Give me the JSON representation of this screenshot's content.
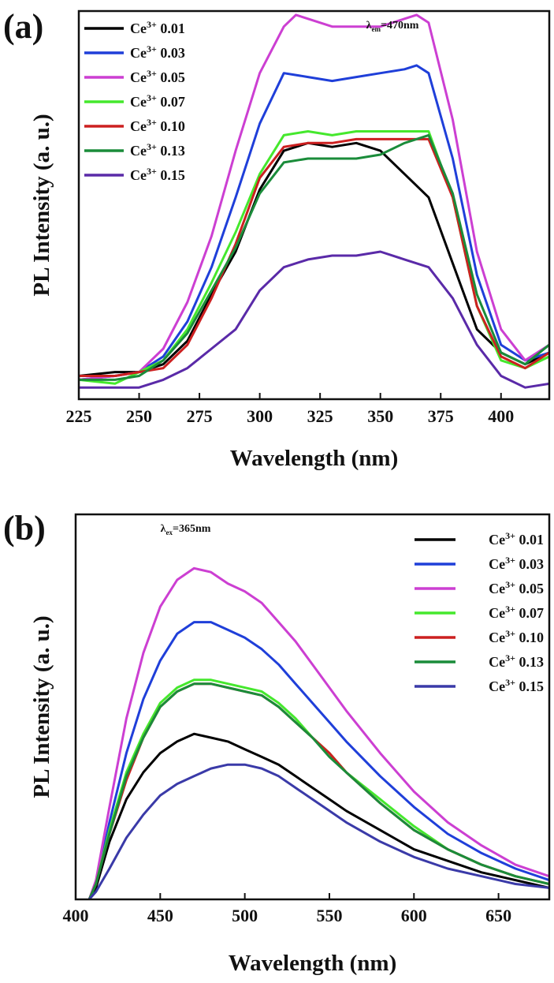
{
  "chart_data": [
    {
      "type": "line",
      "panel_label": "(a)",
      "xlabel": "Wavelength (nm)",
      "ylabel": "PL Intensity (a. u.)",
      "xlim": [
        225,
        420
      ],
      "ylim": [
        0,
        1.0
      ],
      "xticks": [
        225,
        250,
        275,
        300,
        325,
        350,
        375,
        400
      ],
      "annotation": {
        "symbol": "λ",
        "sub": "em",
        "text": "=470nm",
        "x": 355,
        "y": 1.0
      },
      "legend_position": "top-left",
      "series": [
        {
          "name": "Ce3+ 0.01",
          "color": "#000000",
          "x": [
            225,
            240,
            250,
            260,
            270,
            280,
            290,
            300,
            310,
            320,
            330,
            340,
            350,
            360,
            370,
            380,
            390,
            400,
            410,
            420
          ],
          "y": [
            0.06,
            0.07,
            0.07,
            0.09,
            0.15,
            0.27,
            0.38,
            0.54,
            0.64,
            0.66,
            0.65,
            0.66,
            0.64,
            0.58,
            0.52,
            0.35,
            0.18,
            0.12,
            0.09,
            0.12
          ]
        },
        {
          "name": "Ce3+ 0.03",
          "color": "#1f3fd9",
          "x": [
            225,
            240,
            250,
            260,
            270,
            280,
            290,
            300,
            310,
            320,
            330,
            340,
            350,
            360,
            365,
            370,
            380,
            390,
            400,
            410,
            420
          ],
          "y": [
            0.05,
            0.06,
            0.07,
            0.11,
            0.2,
            0.34,
            0.52,
            0.71,
            0.84,
            0.83,
            0.82,
            0.83,
            0.84,
            0.85,
            0.86,
            0.84,
            0.62,
            0.32,
            0.14,
            0.1,
            0.12
          ]
        },
        {
          "name": "Ce3+ 0.05",
          "color": "#cc3fd2",
          "x": [
            225,
            240,
            250,
            260,
            270,
            280,
            290,
            300,
            310,
            315,
            320,
            330,
            340,
            350,
            360,
            365,
            370,
            380,
            390,
            400,
            410,
            420
          ],
          "y": [
            0.05,
            0.06,
            0.07,
            0.13,
            0.25,
            0.42,
            0.64,
            0.84,
            0.96,
            0.99,
            0.98,
            0.96,
            0.96,
            0.96,
            0.98,
            0.99,
            0.97,
            0.72,
            0.38,
            0.18,
            0.1,
            0.14
          ]
        },
        {
          "name": "Ce3+ 0.07",
          "color": "#45e82d",
          "x": [
            225,
            240,
            250,
            260,
            270,
            280,
            290,
            300,
            310,
            320,
            330,
            340,
            350,
            360,
            370,
            380,
            390,
            400,
            410,
            420
          ],
          "y": [
            0.05,
            0.04,
            0.07,
            0.1,
            0.18,
            0.3,
            0.43,
            0.58,
            0.68,
            0.69,
            0.68,
            0.69,
            0.69,
            0.69,
            0.69,
            0.52,
            0.24,
            0.1,
            0.08,
            0.11
          ]
        },
        {
          "name": "Ce3+ 0.10",
          "color": "#cc2020",
          "x": [
            225,
            240,
            250,
            260,
            270,
            280,
            290,
            300,
            310,
            320,
            330,
            340,
            350,
            360,
            370,
            380,
            390,
            400,
            410,
            420
          ],
          "y": [
            0.06,
            0.06,
            0.07,
            0.08,
            0.14,
            0.26,
            0.4,
            0.57,
            0.65,
            0.66,
            0.66,
            0.67,
            0.67,
            0.67,
            0.67,
            0.52,
            0.24,
            0.11,
            0.08,
            0.12
          ]
        },
        {
          "name": "Ce3+ 0.13",
          "color": "#1a8c3a",
          "x": [
            225,
            240,
            250,
            260,
            270,
            280,
            290,
            300,
            310,
            320,
            330,
            340,
            350,
            360,
            370,
            380,
            390,
            400,
            410,
            420
          ],
          "y": [
            0.05,
            0.05,
            0.06,
            0.1,
            0.17,
            0.28,
            0.39,
            0.53,
            0.61,
            0.62,
            0.62,
            0.62,
            0.63,
            0.66,
            0.68,
            0.53,
            0.27,
            0.12,
            0.09,
            0.14
          ]
        },
        {
          "name": "Ce3+ 0.15",
          "color": "#5a2aa8",
          "x": [
            225,
            240,
            250,
            260,
            270,
            280,
            290,
            300,
            310,
            320,
            330,
            340,
            350,
            360,
            370,
            380,
            390,
            400,
            410,
            420
          ],
          "y": [
            0.03,
            0.03,
            0.03,
            0.05,
            0.08,
            0.13,
            0.18,
            0.28,
            0.34,
            0.36,
            0.37,
            0.37,
            0.38,
            0.36,
            0.34,
            0.26,
            0.14,
            0.06,
            0.03,
            0.04
          ]
        }
      ]
    },
    {
      "type": "line",
      "panel_label": "(b)",
      "xlabel": "Wavelength (nm)",
      "ylabel": "PL Intensity (a. u.)",
      "xlim": [
        400,
        680
      ],
      "ylim": [
        0,
        1.0
      ],
      "xticks": [
        400,
        450,
        500,
        550,
        600,
        650
      ],
      "annotation": {
        "symbol": "λ",
        "sub": "ex",
        "text": "=365nm",
        "x": 465,
        "y": 1.0
      },
      "legend_position": "top-right",
      "series": [
        {
          "name": "Ce3+ 0.01",
          "color": "#000000",
          "x": [
            408,
            412,
            420,
            430,
            440,
            450,
            460,
            470,
            480,
            490,
            500,
            510,
            520,
            530,
            540,
            550,
            560,
            580,
            600,
            620,
            640,
            660,
            680
          ],
          "y": [
            0.0,
            0.03,
            0.15,
            0.26,
            0.33,
            0.38,
            0.41,
            0.43,
            0.42,
            0.41,
            0.39,
            0.37,
            0.35,
            0.32,
            0.29,
            0.26,
            0.23,
            0.18,
            0.13,
            0.1,
            0.07,
            0.05,
            0.03
          ]
        },
        {
          "name": "Ce3+ 0.03",
          "color": "#1f3fd9",
          "x": [
            408,
            412,
            420,
            430,
            440,
            450,
            460,
            470,
            480,
            490,
            500,
            510,
            520,
            530,
            540,
            550,
            560,
            580,
            600,
            620,
            640,
            660,
            680
          ],
          "y": [
            0.0,
            0.04,
            0.2,
            0.38,
            0.52,
            0.62,
            0.69,
            0.72,
            0.72,
            0.7,
            0.68,
            0.65,
            0.61,
            0.56,
            0.51,
            0.46,
            0.41,
            0.32,
            0.24,
            0.17,
            0.12,
            0.08,
            0.05
          ]
        },
        {
          "name": "Ce3+ 0.05",
          "color": "#cc3fd2",
          "x": [
            408,
            412,
            420,
            430,
            440,
            450,
            460,
            470,
            480,
            490,
            500,
            510,
            520,
            530,
            540,
            550,
            560,
            580,
            600,
            620,
            640,
            660,
            680
          ],
          "y": [
            0.0,
            0.05,
            0.24,
            0.47,
            0.64,
            0.76,
            0.83,
            0.86,
            0.85,
            0.82,
            0.8,
            0.77,
            0.72,
            0.67,
            0.61,
            0.55,
            0.49,
            0.38,
            0.28,
            0.2,
            0.14,
            0.09,
            0.06
          ]
        },
        {
          "name": "Ce3+ 0.07",
          "color": "#45e82d",
          "x": [
            408,
            412,
            420,
            430,
            440,
            450,
            460,
            470,
            480,
            490,
            500,
            510,
            520,
            530,
            540,
            550,
            560,
            580,
            600,
            620,
            640,
            660,
            680
          ],
          "y": [
            0.0,
            0.04,
            0.18,
            0.33,
            0.43,
            0.51,
            0.55,
            0.57,
            0.57,
            0.56,
            0.55,
            0.54,
            0.51,
            0.47,
            0.42,
            0.38,
            0.33,
            0.26,
            0.19,
            0.13,
            0.09,
            0.06,
            0.04
          ]
        },
        {
          "name": "Ce3+ 0.10",
          "color": "#cc2020",
          "x": [
            408,
            412,
            420,
            430,
            440,
            450,
            460,
            470,
            480,
            490,
            500,
            510,
            520,
            530,
            540,
            550,
            560,
            580,
            600,
            620,
            640,
            660,
            680
          ],
          "y": [
            0.0,
            0.04,
            0.17,
            0.31,
            0.42,
            0.5,
            0.54,
            0.56,
            0.56,
            0.55,
            0.54,
            0.53,
            0.5,
            0.46,
            0.42,
            0.38,
            0.33,
            0.25,
            0.18,
            0.13,
            0.09,
            0.06,
            0.04
          ]
        },
        {
          "name": "Ce3+ 0.13",
          "color": "#1a8c3a",
          "x": [
            408,
            412,
            420,
            430,
            440,
            450,
            460,
            470,
            480,
            490,
            500,
            510,
            520,
            530,
            540,
            550,
            560,
            580,
            600,
            620,
            640,
            660,
            680
          ],
          "y": [
            0.0,
            0.04,
            0.17,
            0.32,
            0.42,
            0.5,
            0.54,
            0.56,
            0.56,
            0.55,
            0.54,
            0.53,
            0.5,
            0.46,
            0.42,
            0.37,
            0.33,
            0.25,
            0.18,
            0.13,
            0.09,
            0.06,
            0.04
          ]
        },
        {
          "name": "Ce3+ 0.15",
          "color": "#3a3aa8",
          "x": [
            408,
            412,
            420,
            430,
            440,
            450,
            460,
            470,
            480,
            490,
            500,
            510,
            520,
            530,
            540,
            550,
            560,
            580,
            600,
            620,
            640,
            660,
            680
          ],
          "y": [
            0.0,
            0.02,
            0.08,
            0.16,
            0.22,
            0.27,
            0.3,
            0.32,
            0.34,
            0.35,
            0.35,
            0.34,
            0.32,
            0.29,
            0.26,
            0.23,
            0.2,
            0.15,
            0.11,
            0.08,
            0.06,
            0.04,
            0.03
          ]
        }
      ]
    }
  ]
}
